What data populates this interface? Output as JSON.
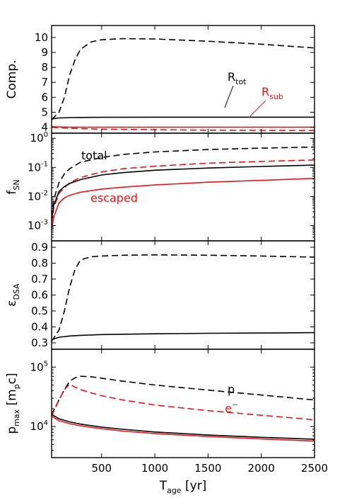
{
  "colors": {
    "black": "#000000",
    "red": "#e8141a"
  },
  "chart_data": {
    "type": "line",
    "shared_x": {
      "label_main": "T",
      "label_sub": "age",
      "label_unit": "[yr]",
      "ticks": [
        "500",
        "1000",
        "1500",
        "2000",
        "2500"
      ],
      "tick_values": [
        500,
        1000,
        1500,
        2000,
        2500
      ],
      "xlim": [
        30,
        2500
      ]
    },
    "panels": [
      {
        "id": "comp",
        "ylabel": "Comp.",
        "ylim": [
          3.6,
          10.8
        ],
        "scale": "linear",
        "ytick_values": [
          4,
          5,
          6,
          7,
          8,
          9,
          10
        ],
        "ytick_labels": [
          "4",
          "5",
          "6",
          "7",
          "8",
          "9",
          "10"
        ],
        "annotations": [
          {
            "main": "R",
            "sub": "tot",
            "color": "#000000"
          },
          {
            "main": "R",
            "sub": "sub",
            "color": "#e8141a"
          }
        ],
        "series": [
          {
            "color": "#000000",
            "dash": true,
            "x": [
              30,
              100,
              150,
              200,
              250,
              300,
              400,
              500,
              700,
              1000,
              1500,
              2000,
              2500
            ],
            "y": [
              4.5,
              5.0,
              6.0,
              7.5,
              8.5,
              9.2,
              9.7,
              9.85,
              9.92,
              9.9,
              9.75,
              9.55,
              9.3
            ]
          },
          {
            "color": "#000000",
            "dash": false,
            "x": [
              30,
              100,
              200,
              300,
              500,
              1000,
              1500,
              2000,
              2500
            ],
            "y": [
              4.55,
              4.62,
              4.64,
              4.65,
              4.66,
              4.67,
              4.67,
              4.67,
              4.67
            ]
          },
          {
            "color": "#e8141a",
            "dash": true,
            "x": [
              30,
              200,
              500,
              1000,
              1500,
              2000,
              2500
            ],
            "y": [
              4.0,
              3.92,
              3.87,
              3.83,
              3.8,
              3.79,
              3.78
            ]
          },
          {
            "color": "#e8141a",
            "dash": false,
            "x": [
              30,
              200,
              500,
              1000,
              1500,
              2000,
              2500
            ],
            "y": [
              4.02,
              4.0,
              4.0,
              4.0,
              4.0,
              4.0,
              4.0
            ]
          }
        ]
      },
      {
        "id": "fsn",
        "ylabel_main": "f",
        "ylabel_sub": "SN",
        "ylim": [
          0.0003,
          1.5
        ],
        "scale": "log",
        "ytick_values": [
          0.001,
          0.01,
          0.1,
          1
        ],
        "ytick_labels": [
          [
            "10",
            "-3"
          ],
          [
            "10",
            "-2"
          ],
          [
            "10",
            "-1"
          ],
          [
            "10",
            "0"
          ]
        ],
        "annotations": [
          {
            "text": "total",
            "color": "#000000"
          },
          {
            "text": "escaped",
            "color": "#e8141a"
          }
        ],
        "series": [
          {
            "color": "#000000",
            "dash": true,
            "x": [
              30,
              50,
              100,
              150,
              200,
              300,
              500,
              700,
              1000,
              1500,
              2000,
              2500
            ],
            "y": [
              0.002,
              0.008,
              0.03,
              0.06,
              0.09,
              0.15,
              0.22,
              0.28,
              0.34,
              0.41,
              0.46,
              0.5
            ]
          },
          {
            "color": "#e8141a",
            "dash": true,
            "x": [
              30,
              50,
              100,
              150,
              200,
              300,
              500,
              700,
              1000,
              1500,
              2000,
              2500
            ],
            "y": [
              0.0012,
              0.004,
              0.013,
              0.02,
              0.03,
              0.045,
              0.07,
              0.09,
              0.11,
              0.14,
              0.16,
              0.18
            ]
          },
          {
            "color": "#000000",
            "dash": false,
            "x": [
              30,
              50,
              100,
              150,
              200,
              300,
              500,
              700,
              1000,
              1500,
              2000,
              2500
            ],
            "y": [
              0.0015,
              0.005,
              0.015,
              0.022,
              0.028,
              0.038,
              0.055,
              0.066,
              0.08,
              0.095,
              0.108,
              0.12
            ]
          },
          {
            "color": "#e8141a",
            "dash": false,
            "x": [
              30,
              50,
              100,
              150,
              200,
              300,
              500,
              700,
              1000,
              1500,
              2000,
              2500
            ],
            "y": [
              0.0007,
              0.002,
              0.006,
              0.009,
              0.011,
              0.014,
              0.018,
              0.021,
              0.025,
              0.031,
              0.036,
              0.042
            ]
          }
        ]
      },
      {
        "id": "edsa",
        "ylabel_main": "ε",
        "ylabel_sub": "DSA",
        "ylim": [
          0.26,
          0.94
        ],
        "scale": "linear",
        "ytick_values": [
          0.3,
          0.4,
          0.5,
          0.6,
          0.7,
          0.8,
          0.9
        ],
        "ytick_labels": [
          "0.3",
          "0.4",
          "0.5",
          "0.6",
          "0.7",
          "0.8",
          "0.9"
        ],
        "annotations": [],
        "series": [
          {
            "color": "#000000",
            "dash": true,
            "x": [
              30,
              100,
              150,
              200,
              250,
              300,
              400,
              500,
              700,
              1000,
              1500,
              2000,
              2500
            ],
            "y": [
              0.31,
              0.38,
              0.5,
              0.65,
              0.76,
              0.82,
              0.84,
              0.845,
              0.85,
              0.852,
              0.85,
              0.845,
              0.838
            ]
          },
          {
            "color": "#000000",
            "dash": false,
            "x": [
              30,
              100,
              200,
              300,
              500,
              1000,
              1500,
              2000,
              2500
            ],
            "y": [
              0.32,
              0.335,
              0.343,
              0.347,
              0.352,
              0.357,
              0.36,
              0.362,
              0.364
            ]
          }
        ]
      },
      {
        "id": "pmax",
        "ylabel_main": "p",
        "ylabel_sub": "max",
        "ylabel_unit_pre": "[m",
        "ylabel_unit_sub": "p",
        "ylabel_unit_post": "c]",
        "ylim": [
          3000,
          200000
        ],
        "scale": "log",
        "ytick_values": [
          10000,
          100000
        ],
        "ytick_labels": [
          [
            "10",
            "4"
          ],
          [
            "10",
            "5"
          ]
        ],
        "annotations": [
          {
            "text": "p",
            "color": "#000000"
          },
          {
            "main": "e",
            "sup": "−",
            "color": "#e8141a"
          }
        ],
        "series": [
          {
            "color": "#000000",
            "dash": true,
            "x": [
              30,
              100,
              150,
              200,
              250,
              300,
              400,
              500,
              700,
              1000,
              1500,
              2000,
              2500
            ],
            "y": [
              16000,
              28000,
              42000,
              58000,
              66000,
              70000,
              69000,
              65000,
              58000,
              50000,
              41000,
              34000,
              28000
            ]
          },
          {
            "color": "#e8141a",
            "dash": true,
            "x": [
              30,
              100,
              150,
              200,
              250,
              300,
              400,
              500,
              700,
              1000,
              1500,
              2000,
              2500
            ],
            "y": [
              15000,
              28000,
              42000,
              52000,
              46000,
              42000,
              37000,
              33000,
              28000,
              23000,
              18500,
              15500,
              13000
            ]
          },
          {
            "color": "#000000",
            "dash": false,
            "x": [
              30,
              100,
              200,
              300,
              500,
              700,
              1000,
              1500,
              2000,
              2500
            ],
            "y": [
              16000,
              13500,
              12000,
              11000,
              9800,
              9000,
              8100,
              7200,
              6600,
              6100
            ]
          },
          {
            "color": "#e8141a",
            "dash": false,
            "x": [
              30,
              100,
              200,
              300,
              500,
              700,
              1000,
              1500,
              2000,
              2500
            ],
            "y": [
              15000,
              12500,
              11200,
              10300,
              9200,
              8400,
              7600,
              6800,
              6200,
              5700
            ]
          }
        ]
      }
    ]
  }
}
